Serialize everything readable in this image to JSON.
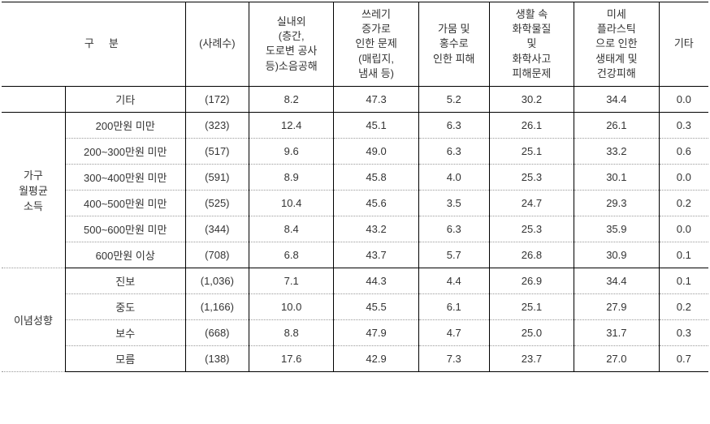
{
  "table": {
    "columns": {
      "gu": "구",
      "bun": "분",
      "cases": "(사례수)",
      "noise": "실내외\n(층간,\n도로변 공사\n등)소음공해",
      "trash": "쓰레기\n증가로\n인한 문제\n(매립지,\n냄새 등)",
      "drought": "가뭄 및\n홍수로\n인한 피해",
      "chemical": "생활 속\n화학물질\n및\n화학사고\n피해문제",
      "microplastic": "미세\n플라스틱\n으로 인한\n생태계 및\n건강피해",
      "other": "기타"
    },
    "groups": [
      {
        "label": "",
        "rows": [
          {
            "sub": "기타",
            "cases": "(172)",
            "v": [
              "8.2",
              "47.3",
              "5.2",
              "30.2",
              "34.4",
              "0.0"
            ]
          }
        ]
      },
      {
        "label": "가구\n월평균\n소득",
        "rows": [
          {
            "sub": "200만원 미만",
            "cases": "(323)",
            "v": [
              "12.4",
              "45.1",
              "6.3",
              "26.1",
              "26.1",
              "0.3"
            ]
          },
          {
            "sub": "200~300만원 미만",
            "cases": "(517)",
            "v": [
              "9.6",
              "49.0",
              "6.3",
              "25.1",
              "33.2",
              "0.6"
            ]
          },
          {
            "sub": "300~400만원 미만",
            "cases": "(591)",
            "v": [
              "8.9",
              "45.8",
              "4.0",
              "25.3",
              "30.1",
              "0.0"
            ]
          },
          {
            "sub": "400~500만원 미만",
            "cases": "(525)",
            "v": [
              "10.4",
              "45.6",
              "3.5",
              "24.7",
              "29.3",
              "0.2"
            ]
          },
          {
            "sub": "500~600만원 미만",
            "cases": "(344)",
            "v": [
              "8.4",
              "43.2",
              "6.3",
              "25.3",
              "35.9",
              "0.0"
            ]
          },
          {
            "sub": "600만원 이상",
            "cases": "(708)",
            "v": [
              "6.8",
              "43.7",
              "5.7",
              "26.8",
              "30.9",
              "0.1"
            ]
          }
        ]
      },
      {
        "label": "이념성향",
        "rows": [
          {
            "sub": "진보",
            "cases": "(1,036)",
            "v": [
              "7.1",
              "44.3",
              "4.4",
              "26.9",
              "34.4",
              "0.1"
            ]
          },
          {
            "sub": "중도",
            "cases": "(1,166)",
            "v": [
              "10.0",
              "45.5",
              "6.1",
              "25.1",
              "27.9",
              "0.2"
            ]
          },
          {
            "sub": "보수",
            "cases": "(668)",
            "v": [
              "8.8",
              "47.9",
              "4.7",
              "25.0",
              "31.7",
              "0.3"
            ]
          },
          {
            "sub": "모름",
            "cases": "(138)",
            "v": [
              "17.6",
              "42.9",
              "7.3",
              "23.7",
              "27.0",
              "0.7"
            ]
          }
        ]
      }
    ],
    "col_widths": [
      "9%",
      "17%",
      "9%",
      "12%",
      "12%",
      "10%",
      "12%",
      "12%",
      "7%"
    ],
    "colors": {
      "border": "#000000",
      "dotted": "#999999",
      "background": "#ffffff",
      "text": "#333333"
    },
    "font_size": 13
  }
}
